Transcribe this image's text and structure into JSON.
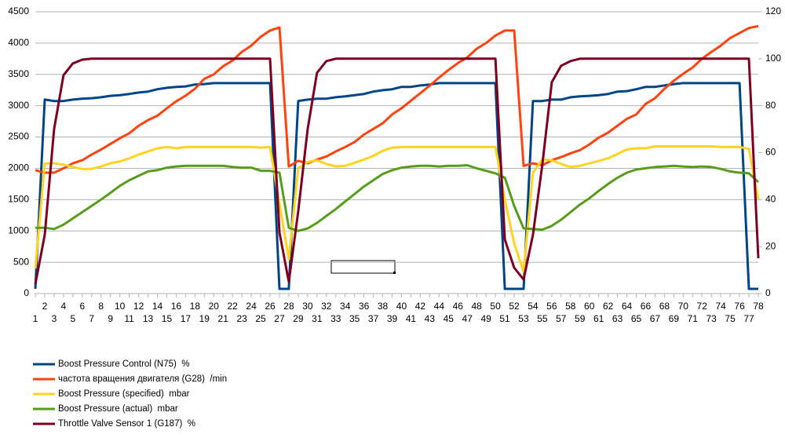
{
  "chart_data": {
    "type": "line",
    "categories": [
      1,
      2,
      3,
      4,
      5,
      6,
      7,
      8,
      9,
      10,
      11,
      12,
      13,
      14,
      15,
      16,
      17,
      18,
      19,
      20,
      21,
      22,
      23,
      24,
      25,
      26,
      27,
      28,
      29,
      30,
      31,
      32,
      33,
      34,
      35,
      36,
      37,
      38,
      39,
      40,
      41,
      42,
      43,
      44,
      45,
      46,
      47,
      48,
      49,
      50,
      51,
      52,
      53,
      54,
      55,
      56,
      57,
      58,
      59,
      60,
      61,
      62,
      63,
      64,
      65,
      66,
      67,
      68,
      69,
      70,
      71,
      72,
      73,
      74,
      75,
      76,
      77,
      78
    ],
    "ylim": [
      0,
      4500
    ],
    "yticks": [
      0,
      500,
      1000,
      1500,
      2000,
      2500,
      3000,
      3500,
      4000,
      4500
    ],
    "y2lim": [
      0,
      120
    ],
    "y2ticks": [
      0,
      20,
      40,
      60,
      80,
      100,
      120
    ],
    "grid": true,
    "legend": "bottom",
    "series": [
      {
        "name": "Boost Pressure Control (N75)  %",
        "color": "#004586",
        "axis": "y2",
        "values": [
          2,
          82.6,
          82,
          82,
          82.6,
          83,
          83.2,
          83.6,
          84.2,
          84.5,
          85,
          85.6,
          86,
          87,
          87.6,
          88,
          88.2,
          89,
          89.2,
          89.6,
          89.6,
          89.6,
          89.6,
          89.6,
          89.6,
          89.6,
          2,
          2,
          82,
          82.6,
          83,
          83,
          83.6,
          84,
          84.5,
          85,
          86,
          86.6,
          87,
          88,
          88,
          88.6,
          89,
          89.6,
          89.6,
          89.6,
          89.6,
          89.6,
          89.6,
          89.6,
          2,
          2,
          2,
          82,
          82,
          82.6,
          82.6,
          83.6,
          84,
          84.2,
          84.5,
          85,
          86,
          86.2,
          87,
          88,
          88,
          88.6,
          89.2,
          89.6,
          89.6,
          89.6,
          89.6,
          89.6,
          89.6,
          89.6,
          2,
          2
        ]
      },
      {
        "name": "частота вращения двигателя (G28)  /min",
        "color": "#ff420e",
        "values": [
          1970,
          1930,
          1930,
          2000,
          2080,
          2130,
          2220,
          2300,
          2390,
          2480,
          2560,
          2680,
          2770,
          2840,
          2960,
          3070,
          3160,
          3270,
          3430,
          3500,
          3630,
          3720,
          3860,
          3960,
          4100,
          4200,
          4250,
          2030,
          2120,
          2080,
          2140,
          2190,
          2270,
          2340,
          2420,
          2540,
          2630,
          2720,
          2860,
          2960,
          3080,
          3200,
          3320,
          3450,
          3570,
          3680,
          3770,
          3910,
          4000,
          4120,
          4200,
          4200,
          2040,
          2080,
          2050,
          2130,
          2180,
          2240,
          2290,
          2380,
          2490,
          2570,
          2680,
          2790,
          2860,
          3030,
          3120,
          3270,
          3400,
          3510,
          3610,
          3750,
          3860,
          3960,
          4080,
          4160,
          4240,
          4270
        ]
      },
      {
        "name": "Boost Pressure (specified)  mbar",
        "color": "#ffd320",
        "values": [
          400,
          2080,
          2080,
          2060,
          2020,
          1990,
          1990,
          2030,
          2080,
          2110,
          2160,
          2220,
          2270,
          2320,
          2340,
          2320,
          2340,
          2340,
          2340,
          2340,
          2340,
          2340,
          2340,
          2340,
          2330,
          2340,
          1430,
          550,
          2000,
          2100,
          2130,
          2070,
          2030,
          2040,
          2090,
          2140,
          2200,
          2280,
          2330,
          2340,
          2340,
          2340,
          2340,
          2340,
          2340,
          2340,
          2340,
          2340,
          2340,
          2340,
          1500,
          800,
          350,
          1930,
          2140,
          2130,
          2070,
          2020,
          2040,
          2080,
          2120,
          2160,
          2230,
          2300,
          2320,
          2320,
          2350,
          2350,
          2350,
          2350,
          2350,
          2350,
          2350,
          2340,
          2340,
          2340,
          2310,
          1500
        ]
      },
      {
        "name": "Boost Pressure (actual)  mbar",
        "color": "#579d1c",
        "values": [
          1050,
          1050,
          1030,
          1100,
          1200,
          1300,
          1400,
          1500,
          1610,
          1720,
          1810,
          1880,
          1950,
          1970,
          2010,
          2030,
          2040,
          2040,
          2040,
          2040,
          2040,
          2020,
          2010,
          2010,
          1960,
          1960,
          1930,
          1050,
          1000,
          1040,
          1130,
          1240,
          1350,
          1470,
          1590,
          1710,
          1810,
          1910,
          1970,
          2010,
          2030,
          2040,
          2040,
          2030,
          2040,
          2040,
          2050,
          2000,
          1960,
          1920,
          1850,
          1400,
          1040,
          1030,
          1020,
          1080,
          1180,
          1300,
          1420,
          1520,
          1640,
          1750,
          1850,
          1930,
          1980,
          2000,
          2020,
          2030,
          2040,
          2030,
          2020,
          2030,
          2020,
          1990,
          1950,
          1930,
          1920,
          1780
        ]
      },
      {
        "name": "Throttle Valve Sensor 1 (G187)  %",
        "color": "#7e0021",
        "axis": "y2",
        "values": [
          4,
          25,
          70,
          93,
          98,
          99.6,
          100,
          100,
          100,
          100,
          100,
          100,
          100,
          100,
          100,
          100,
          100,
          100,
          100,
          100,
          100,
          100,
          100,
          100,
          100,
          100,
          26,
          5,
          35,
          70,
          94,
          99,
          100,
          100,
          100,
          100,
          100,
          100,
          100,
          100,
          100,
          100,
          100,
          100,
          100,
          100,
          100,
          100,
          100,
          100,
          23,
          11,
          6,
          25,
          55,
          90,
          97,
          99,
          100,
          100,
          100,
          100,
          100,
          100,
          100,
          100,
          100,
          100,
          100,
          100,
          100,
          100,
          100,
          100,
          100,
          100,
          100,
          15
        ]
      }
    ]
  }
}
